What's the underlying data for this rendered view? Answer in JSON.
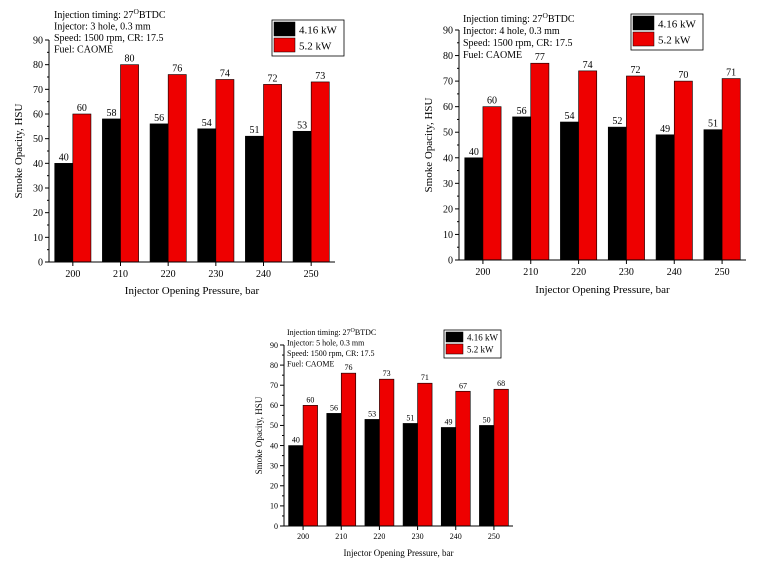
{
  "colors": {
    "series_a": "#000000",
    "series_b": "#ee0000",
    "axis": "#000000"
  },
  "chart_data": [
    {
      "type": "bar",
      "info_lines": [
        "Injection timing: 27",
        "Injector: 3 hole, 0.3 mm",
        "Speed: 1500 rpm, CR: 17.5",
        "Fuel: CAOME"
      ],
      "info_superscript": "O",
      "info_suffix": "BTDC",
      "categories": [
        "200",
        "210",
        "220",
        "230",
        "240",
        "250"
      ],
      "series": [
        {
          "name": "4.16 kW",
          "values": [
            40,
            58,
            56,
            54,
            51,
            53
          ]
        },
        {
          "name": "5.2 kW",
          "values": [
            60,
            80,
            76,
            74,
            72,
            73
          ]
        }
      ],
      "xlabel": "Injector Opening Pressure, bar",
      "ylabel": "Smoke Opacity, HSU",
      "ylim": [
        0,
        90
      ],
      "yticks": [
        0,
        10,
        20,
        30,
        40,
        50,
        60,
        70,
        80,
        90
      ],
      "legend": "top-right",
      "grid": false
    },
    {
      "type": "bar",
      "info_lines": [
        "Injection timing: 27",
        "Injector: 4 hole, 0.3 mm",
        "Speed: 1500 rpm, CR: 17.5",
        "Fuel: CAOME"
      ],
      "info_superscript": "O",
      "info_suffix": "BTDC",
      "categories": [
        "200",
        "210",
        "220",
        "230",
        "240",
        "250"
      ],
      "series": [
        {
          "name": "4.16 kW",
          "values": [
            40,
            56,
            54,
            52,
            49,
            51
          ]
        },
        {
          "name": "5.2 kW",
          "values": [
            60,
            77,
            74,
            72,
            70,
            71
          ]
        }
      ],
      "xlabel": "Injector Opening Pressure, bar",
      "ylabel": "Smoke Opacity, HSU",
      "ylim": [
        0,
        90
      ],
      "yticks": [
        0,
        10,
        20,
        30,
        40,
        50,
        60,
        70,
        80,
        90
      ],
      "legend": "top-right",
      "grid": false
    },
    {
      "type": "bar",
      "info_lines": [
        "Injection timing: 27",
        "Injector: 5 hole, 0.3 mm",
        "Speed: 1500 rpm, CR: 17.5",
        "Fuel: CAOME"
      ],
      "info_superscript": "O",
      "info_suffix": "BTDC",
      "categories": [
        "200",
        "210",
        "220",
        "230",
        "240",
        "250"
      ],
      "series": [
        {
          "name": "4.16 kW",
          "values": [
            40,
            56,
            53,
            51,
            49,
            50
          ]
        },
        {
          "name": "5.2 kW",
          "values": [
            60,
            76,
            73,
            71,
            67,
            68
          ]
        }
      ],
      "xlabel": "Injector Opening Pressure, bar",
      "ylabel": "Smoke Opacity, HSU",
      "ylim": [
        0,
        90
      ],
      "yticks": [
        0,
        10,
        20,
        30,
        40,
        50,
        60,
        70,
        80,
        90
      ],
      "legend": "top-right",
      "grid": false
    }
  ]
}
